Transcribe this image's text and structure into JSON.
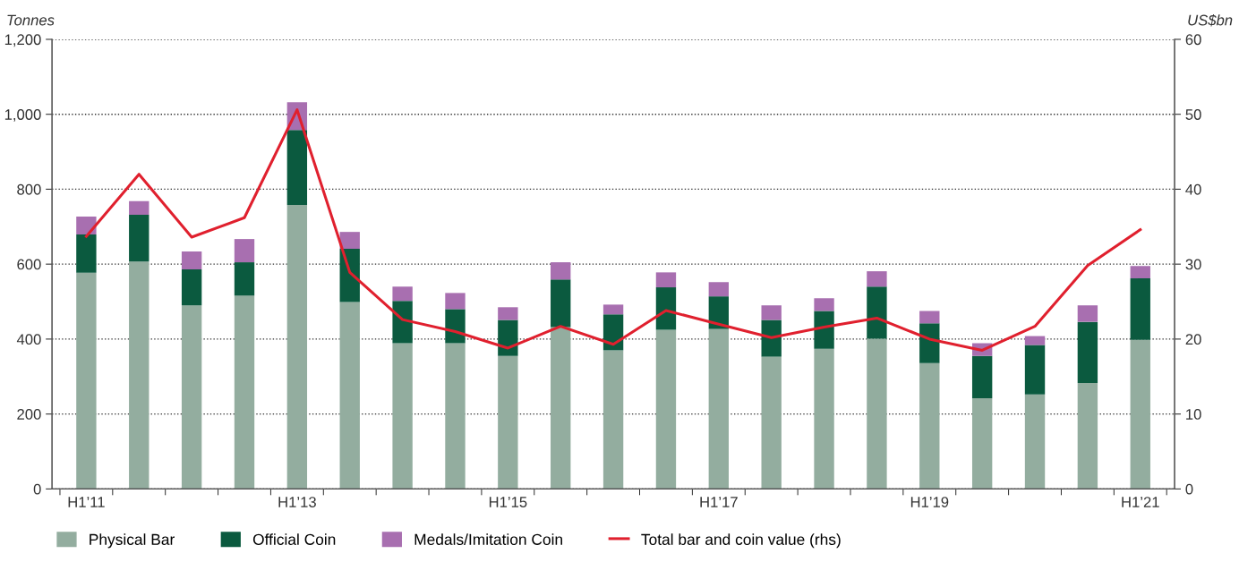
{
  "chart_data": {
    "type": "bar",
    "stacked": true,
    "ylabel": "Tonnes",
    "y2label": "US$bn",
    "categories": [
      "H1’11",
      null,
      null,
      null,
      "H1’13",
      null,
      null,
      null,
      "H1’15",
      null,
      null,
      null,
      "H1’17",
      null,
      null,
      null,
      "H1’19",
      null,
      null,
      null,
      "H1’21"
    ],
    "series": [
      {
        "name": "Physical Bar",
        "color": "#93ad9f",
        "values": [
          577,
          607,
          490,
          516,
          758,
          499,
          389,
          389,
          355,
          432,
          370,
          425,
          427,
          353,
          374,
          401,
          336,
          242,
          252,
          283,
          398
        ]
      },
      {
        "name": "Official Coin",
        "color": "#0b5a3f",
        "values": [
          102,
          125,
          96,
          89,
          200,
          142,
          113,
          91,
          96,
          127,
          96,
          113,
          87,
          98,
          101,
          139,
          106,
          113,
          132,
          163,
          164
        ]
      },
      {
        "name": "Medals/Imitation Coin",
        "color": "#a86fb0",
        "values": [
          48,
          36,
          48,
          62,
          74,
          45,
          38,
          43,
          34,
          46,
          26,
          40,
          38,
          39,
          34,
          41,
          33,
          34,
          24,
          44,
          33
        ]
      },
      {
        "name": "Total bar and coin value (rhs)",
        "color": "#e0202e",
        "type": "line",
        "axis": "y2",
        "values": [
          33.7,
          42.0,
          33.6,
          36.2,
          50.6,
          28.9,
          22.6,
          21.0,
          18.8,
          21.7,
          19.3,
          23.8,
          22.0,
          20.2,
          21.6,
          22.8,
          20.0,
          18.5,
          21.7,
          29.8,
          34.6
        ]
      }
    ],
    "ylim": [
      0,
      1200
    ],
    "yticks": [
      0,
      200,
      400,
      600,
      800,
      {
        "value": 1000,
        "label": "1,000"
      },
      {
        "value": 1200,
        "label": "1,200"
      }
    ],
    "y2lim": [
      0,
      60
    ],
    "y2ticks": [
      0,
      10,
      20,
      30,
      40,
      50,
      60
    ],
    "grid": "y",
    "legend": "bottom",
    "marker": "none",
    "line_style": "solid"
  }
}
